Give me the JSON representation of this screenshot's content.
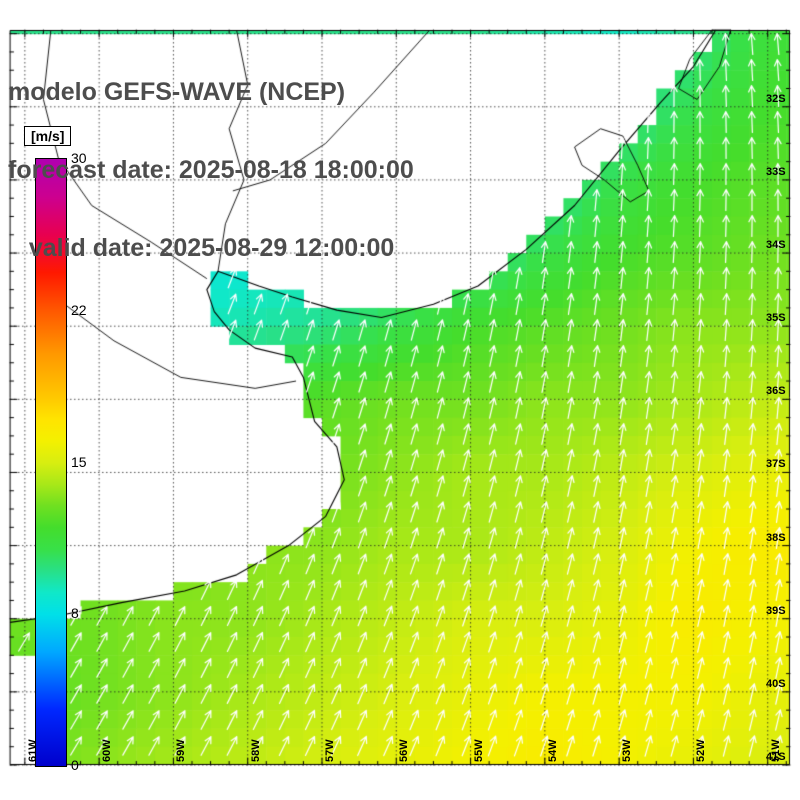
{
  "title": {
    "line1": "modelo GEFS-WAVE (NCEP)",
    "line2": "forecast date: 2025-08-18 18:00:00",
    "line3": "   valid date: 2025-08-29 12:00:00"
  },
  "colorbar": {
    "unit_label": "[m/s]",
    "ticks": [
      {
        "label": "30",
        "value": 30
      },
      {
        "label": "22",
        "value": 22
      },
      {
        "label": "15",
        "value": 15
      },
      {
        "label": "8",
        "value": 8
      },
      {
        "label": "0",
        "value": 0
      }
    ]
  },
  "chart_data": {
    "type": "heatmap",
    "title": "modelo GEFS-WAVE (NCEP)",
    "variable": "wind speed with direction arrows",
    "units": "m/s",
    "legend_range": [
      0,
      30
    ],
    "lon_axis": {
      "min": -61.2,
      "max": -50.7,
      "tick_lons": [
        -61,
        -60,
        -59,
        -58,
        -57,
        -56,
        -55,
        -54,
        -53,
        -52,
        -51
      ],
      "tick_labels": [
        "61W",
        "60W",
        "59W",
        "58W",
        "57W",
        "56W",
        "55W",
        "54W",
        "53W",
        "52W",
        "51W"
      ]
    },
    "lat_axis": {
      "min": -41.0,
      "max": -30.95,
      "tick_lats": [
        -32,
        -33,
        -34,
        -35,
        -36,
        -37,
        -38,
        -39,
        -40,
        -41
      ],
      "tick_labels": [
        "32S",
        "33S",
        "34S",
        "35S",
        "36S",
        "37S",
        "38S",
        "39S",
        "40S",
        "41S"
      ]
    },
    "colormap": [
      [
        0,
        "#0000cc"
      ],
      [
        3,
        "#0028ff"
      ],
      [
        6,
        "#00a8ff"
      ],
      [
        8,
        "#00e0e8"
      ],
      [
        9,
        "#10e8c8"
      ],
      [
        10,
        "#28e088"
      ],
      [
        11,
        "#38e048"
      ],
      [
        12,
        "#44dd2c"
      ],
      [
        13,
        "#70e020"
      ],
      [
        14,
        "#a8e818"
      ],
      [
        15,
        "#d8ee10"
      ],
      [
        16,
        "#f4f000"
      ],
      [
        17,
        "#ffe400"
      ],
      [
        18,
        "#ffc800"
      ],
      [
        20,
        "#ff9800"
      ],
      [
        22,
        "#ff5800"
      ],
      [
        24,
        "#ff1800"
      ],
      [
        26,
        "#e80050"
      ],
      [
        28,
        "#cc0090"
      ],
      [
        30,
        "#b000b0"
      ]
    ],
    "speed_grid": {
      "lons": [
        -61,
        -60,
        -59,
        -58,
        -57,
        -56,
        -55,
        -54,
        -53,
        -52,
        -51
      ],
      "lats": [
        -31,
        -32,
        -33,
        -34,
        -35,
        -36,
        -37,
        -38,
        -39,
        -40,
        -41
      ],
      "values": [
        [
          10,
          10,
          10,
          10,
          10,
          10,
          10,
          9.5,
          9,
          10,
          11.5
        ],
        [
          10,
          10,
          10,
          10,
          10,
          10,
          9.5,
          9,
          9.5,
          11,
          12
        ],
        [
          9.5,
          9.5,
          9,
          9,
          9,
          9,
          9,
          9.5,
          11,
          12,
          12.5
        ],
        [
          9,
          9,
          8.5,
          8.5,
          8.5,
          9,
          9.5,
          11,
          12,
          12.5,
          13
        ],
        [
          10,
          9.5,
          9,
          9.5,
          10,
          11,
          12,
          12.5,
          13,
          13.5,
          13.5
        ],
        [
          11,
          11.5,
          12,
          12,
          12.5,
          13,
          13,
          13.5,
          13.5,
          14,
          14.5
        ],
        [
          12,
          12.5,
          13,
          13,
          13,
          13.5,
          14,
          14,
          14.5,
          15,
          15.5
        ],
        [
          12.5,
          13,
          13,
          13.5,
          13.5,
          14,
          14,
          14.5,
          15,
          16,
          16.5
        ],
        [
          13,
          13,
          13.5,
          13.5,
          14,
          14.5,
          15,
          15,
          15.5,
          16.5,
          16
        ],
        [
          12.5,
          13,
          13.5,
          14,
          14.5,
          15,
          15.5,
          16,
          16,
          16,
          15.5
        ],
        [
          13,
          13.5,
          14,
          14.5,
          15,
          15.5,
          16,
          16.5,
          16,
          15.5,
          15
        ]
      ]
    },
    "direction_grid": {
      "comment_degrees_clockwise_from_north": true,
      "lons": [
        -61,
        -58.5,
        -56,
        -53.5,
        -51
      ],
      "lats": [
        -31,
        -33.5,
        -36,
        -38.5,
        -41
      ],
      "values": [
        [
          25,
          22,
          12,
          2,
          -5
        ],
        [
          25,
          22,
          14,
          6,
          0
        ],
        [
          26,
          22,
          16,
          10,
          5
        ],
        [
          30,
          26,
          20,
          14,
          10
        ],
        [
          32,
          28,
          24,
          18,
          14
        ]
      ]
    },
    "coastline": [
      [
        -51.7,
        -30.95
      ],
      [
        -52.0,
        -31.45
      ],
      [
        -52.45,
        -31.95
      ],
      [
        -53.0,
        -32.6
      ],
      [
        -53.6,
        -33.35
      ],
      [
        -54.25,
        -33.95
      ],
      [
        -54.9,
        -34.45
      ],
      [
        -55.5,
        -34.7
      ],
      [
        -56.2,
        -34.88
      ],
      [
        -56.8,
        -34.78
      ],
      [
        -57.4,
        -34.6
      ],
      [
        -57.85,
        -34.45
      ],
      [
        -58.4,
        -34.25
      ],
      [
        -58.55,
        -34.5
      ],
      [
        -58.45,
        -34.8
      ],
      [
        -58.25,
        -35.05
      ],
      [
        -57.9,
        -35.3
      ],
      [
        -57.4,
        -35.42
      ],
      [
        -57.25,
        -35.7
      ],
      [
        -57.1,
        -36.3
      ],
      [
        -56.8,
        -36.65
      ],
      [
        -56.7,
        -37.1
      ],
      [
        -56.95,
        -37.6
      ],
      [
        -57.45,
        -38.0
      ],
      [
        -58.15,
        -38.4
      ],
      [
        -58.85,
        -38.62
      ],
      [
        -59.7,
        -38.78
      ],
      [
        -60.5,
        -38.95
      ],
      [
        -61.2,
        -39.05
      ]
    ],
    "rivers": [
      [
        [
          -58.15,
          -30.95
        ],
        [
          -58.0,
          -31.7
        ],
        [
          -58.25,
          -32.3
        ],
        [
          -58.05,
          -33.0
        ],
        [
          -58.3,
          -33.6
        ],
        [
          -58.4,
          -34.25
        ]
      ],
      [
        [
          -60.65,
          -30.95
        ],
        [
          -60.75,
          -31.9
        ],
        [
          -60.55,
          -32.7
        ],
        [
          -60.1,
          -33.35
        ],
        [
          -59.3,
          -33.85
        ],
        [
          -58.55,
          -34.35
        ]
      ],
      [
        [
          -55.55,
          -30.95
        ],
        [
          -56.3,
          -31.8
        ],
        [
          -56.95,
          -32.5
        ],
        [
          -57.7,
          -33.0
        ],
        [
          -58.2,
          -33.15
        ]
      ],
      [
        [
          -60.6,
          -34.6
        ],
        [
          -59.8,
          -35.2
        ],
        [
          -58.9,
          -35.7
        ],
        [
          -57.9,
          -35.85
        ],
        [
          -57.35,
          -35.75
        ]
      ]
    ],
    "lakes": [
      [
        [
          -53.6,
          -32.55
        ],
        [
          -53.25,
          -32.3
        ],
        [
          -52.95,
          -32.4
        ],
        [
          -52.75,
          -32.8
        ],
        [
          -52.6,
          -33.15
        ],
        [
          -52.85,
          -33.3
        ],
        [
          -53.2,
          -33.0
        ],
        [
          -53.5,
          -32.8
        ]
      ],
      [
        [
          -51.75,
          -30.95
        ],
        [
          -52.05,
          -31.35
        ],
        [
          -52.2,
          -31.75
        ],
        [
          -51.95,
          -31.9
        ],
        [
          -51.65,
          -31.45
        ],
        [
          -51.5,
          -30.95
        ]
      ]
    ],
    "nodata_regions": [
      [
        [
          -61.25,
          -39.4
        ],
        [
          -60.6,
          -39.75
        ],
        [
          -60.8,
          -41.1
        ],
        [
          -61.25,
          -41.1
        ]
      ]
    ]
  }
}
